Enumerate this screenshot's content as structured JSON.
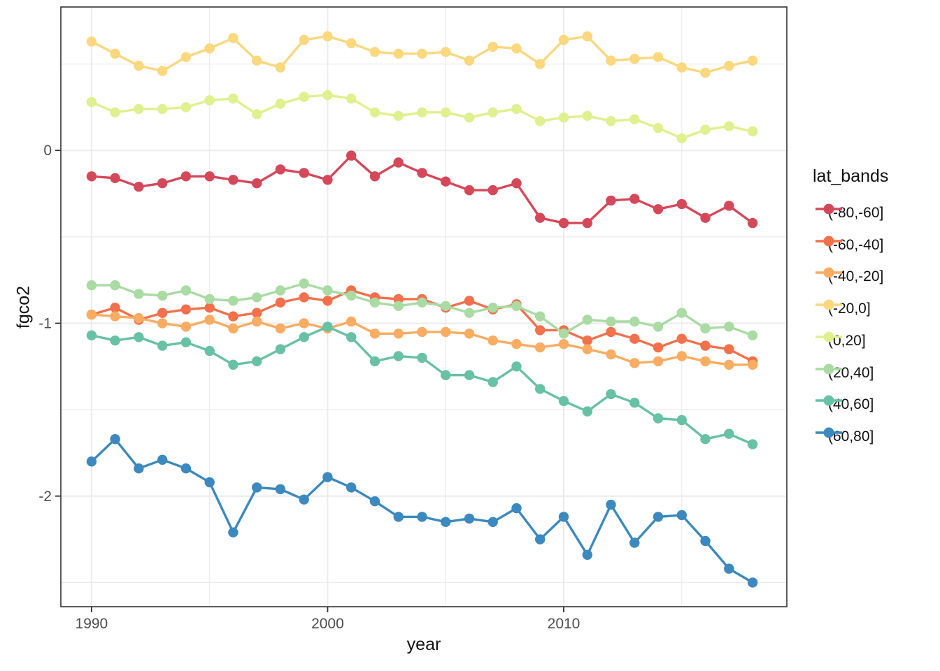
{
  "chart_data": {
    "type": "line",
    "title": "",
    "xlabel": "year",
    "ylabel": "fgco2",
    "legend_title": "lat_bands",
    "legend_position": "right",
    "grid": true,
    "xlim": [
      1988.7,
      2019.45
    ],
    "ylim": [
      -2.64,
      0.83
    ],
    "x_ticks": {
      "major": [
        1990,
        2000,
        2010
      ],
      "minor": [
        1995,
        2005,
        2015
      ]
    },
    "y_ticks": {
      "major": [
        0,
        -1,
        -2
      ],
      "minor": [
        0.5,
        -0.5,
        -1.5,
        -2.5
      ]
    },
    "x_tick_labels": [
      "1990",
      "2000",
      "2010"
    ],
    "y_tick_labels": [
      "0",
      "-1",
      "-2"
    ],
    "x": [
      1990,
      1991,
      1992,
      1993,
      1994,
      1995,
      1996,
      1997,
      1998,
      1999,
      2000,
      2001,
      2002,
      2003,
      2004,
      2005,
      2006,
      2007,
      2008,
      2009,
      2010,
      2011,
      2012,
      2013,
      2014,
      2015,
      2016,
      2017,
      2018
    ],
    "series": [
      {
        "name": "(-80,-60]",
        "color": "#D5485A",
        "values": [
          -0.15,
          -0.16,
          -0.21,
          -0.19,
          -0.15,
          -0.15,
          -0.17,
          -0.19,
          -0.11,
          -0.13,
          -0.17,
          -0.03,
          -0.15,
          -0.07,
          -0.13,
          -0.18,
          -0.23,
          -0.23,
          -0.19,
          -0.39,
          -0.42,
          -0.42,
          -0.29,
          -0.28,
          -0.34,
          -0.31,
          -0.39,
          -0.32,
          -0.42
        ]
      },
      {
        "name": "(-60,-40]",
        "color": "#F2704B",
        "values": [
          -0.95,
          -0.91,
          -0.98,
          -0.94,
          -0.92,
          -0.91,
          -0.96,
          -0.94,
          -0.88,
          -0.85,
          -0.87,
          -0.81,
          -0.85,
          -0.86,
          -0.86,
          -0.91,
          -0.87,
          -0.92,
          -0.89,
          -1.04,
          -1.04,
          -1.1,
          -1.05,
          -1.09,
          -1.14,
          -1.09,
          -1.13,
          -1.15,
          -1.22
        ]
      },
      {
        "name": "(-40,-20]",
        "color": "#F9AC62",
        "values": [
          -0.95,
          -0.96,
          -0.97,
          -1.0,
          -1.02,
          -0.98,
          -1.03,
          -0.99,
          -1.03,
          -1.0,
          -1.03,
          -0.99,
          -1.06,
          -1.06,
          -1.05,
          -1.05,
          -1.06,
          -1.1,
          -1.12,
          -1.14,
          -1.12,
          -1.15,
          -1.18,
          -1.23,
          -1.22,
          -1.19,
          -1.22,
          -1.24,
          -1.24
        ]
      },
      {
        "name": "(-20,0]",
        "color": "#FBD77D",
        "values": [
          0.63,
          0.56,
          0.49,
          0.46,
          0.54,
          0.59,
          0.65,
          0.52,
          0.48,
          0.64,
          0.66,
          0.62,
          0.57,
          0.56,
          0.56,
          0.57,
          0.52,
          0.6,
          0.59,
          0.5,
          0.64,
          0.66,
          0.52,
          0.53,
          0.54,
          0.48,
          0.45,
          0.49,
          0.52
        ]
      },
      {
        "name": "(0,20]",
        "color": "#DFF08F",
        "values": [
          0.28,
          0.22,
          0.24,
          0.24,
          0.25,
          0.29,
          0.3,
          0.21,
          0.27,
          0.31,
          0.32,
          0.3,
          0.22,
          0.2,
          0.22,
          0.22,
          0.19,
          0.22,
          0.24,
          0.17,
          0.19,
          0.2,
          0.17,
          0.18,
          0.13,
          0.07,
          0.12,
          0.14,
          0.11
        ]
      },
      {
        "name": "(20,40]",
        "color": "#A9DBA3",
        "values": [
          -0.78,
          -0.78,
          -0.83,
          -0.84,
          -0.81,
          -0.86,
          -0.87,
          -0.85,
          -0.81,
          -0.77,
          -0.81,
          -0.84,
          -0.88,
          -0.9,
          -0.88,
          -0.9,
          -0.94,
          -0.91,
          -0.9,
          -0.96,
          -1.06,
          -0.98,
          -0.99,
          -0.99,
          -1.02,
          -0.94,
          -1.03,
          -1.02,
          -1.07
        ]
      },
      {
        "name": "(40,60]",
        "color": "#67C1A5",
        "values": [
          -1.07,
          -1.1,
          -1.08,
          -1.13,
          -1.11,
          -1.16,
          -1.24,
          -1.22,
          -1.15,
          -1.08,
          -1.02,
          -1.08,
          -1.22,
          -1.19,
          -1.2,
          -1.3,
          -1.3,
          -1.34,
          -1.25,
          -1.38,
          -1.45,
          -1.51,
          -1.41,
          -1.46,
          -1.55,
          -1.56,
          -1.67,
          -1.64,
          -1.7
        ]
      },
      {
        "name": "(60,80]",
        "color": "#3B89BF",
        "values": [
          -1.8,
          -1.67,
          -1.84,
          -1.79,
          -1.84,
          -1.92,
          -2.21,
          -1.95,
          -1.96,
          -2.02,
          -1.89,
          -1.95,
          -2.03,
          -2.12,
          -2.12,
          -2.15,
          -2.13,
          -2.15,
          -2.07,
          -2.25,
          -2.12,
          -2.34,
          -2.05,
          -2.27,
          -2.12,
          -2.11,
          -2.26,
          -2.42,
          -2.5
        ]
      }
    ]
  },
  "theme": {
    "background": "#FFFFFF",
    "grid": "#EBEBEB",
    "panel_border": "#333333",
    "tick": "#333333",
    "tick_label": "#4D4D4D",
    "text": "#111111"
  }
}
